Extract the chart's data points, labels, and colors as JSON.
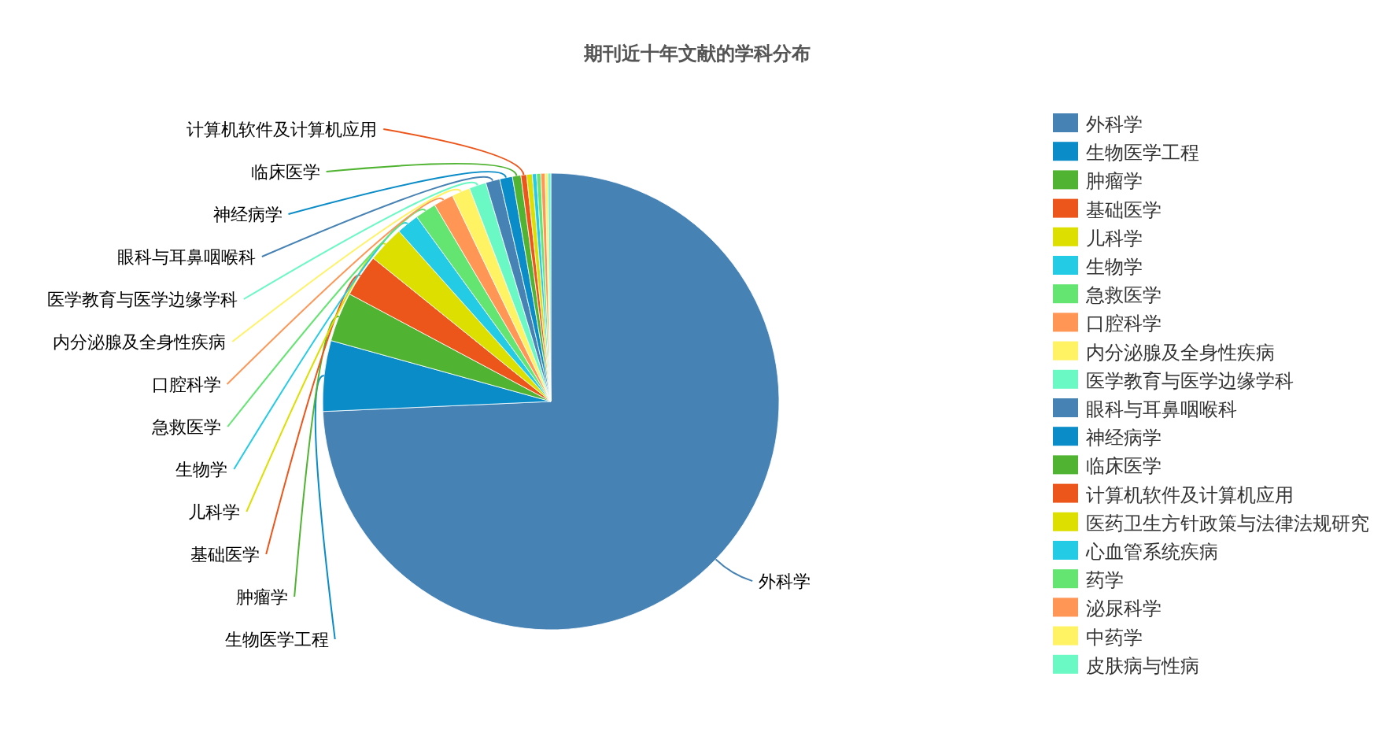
{
  "chart_data": {
    "type": "pie",
    "title": "期刊近十年文献的学科分布",
    "categories": [
      "外科学",
      "生物医学工程",
      "肿瘤学",
      "基础医学",
      "儿科学",
      "生物学",
      "急救医学",
      "口腔科学",
      "内分泌腺及全身性疾病",
      "医学教育与医学边缘学科",
      "眼科与耳鼻咽喉科",
      "神经病学",
      "临床医学",
      "计算机软件及计算机应用",
      "医药卫生方针政策与法律法规研究",
      "心血管系统疾病",
      "药学",
      "泌尿科学",
      "中药学",
      "皮肤病与性病"
    ],
    "values": [
      74.3,
      5.0,
      3.5,
      3.0,
      2.6,
      1.6,
      1.5,
      1.4,
      1.3,
      1.2,
      1.0,
      0.9,
      0.6,
      0.4,
      0.4,
      0.3,
      0.3,
      0.3,
      0.2,
      0.2
    ],
    "colors": [
      "#4682b4",
      "#0a8cc8",
      "#50b432",
      "#ed561b",
      "#dddf00",
      "#24cbe5",
      "#64e572",
      "#ff9655",
      "#fff263",
      "#6af9c4",
      "#4682b4",
      "#0a8cc8",
      "#50b432",
      "#ed561b",
      "#dddf00",
      "#24cbe5",
      "#64e572",
      "#ff9655",
      "#fff263",
      "#6af9c4"
    ],
    "legend": "right"
  }
}
